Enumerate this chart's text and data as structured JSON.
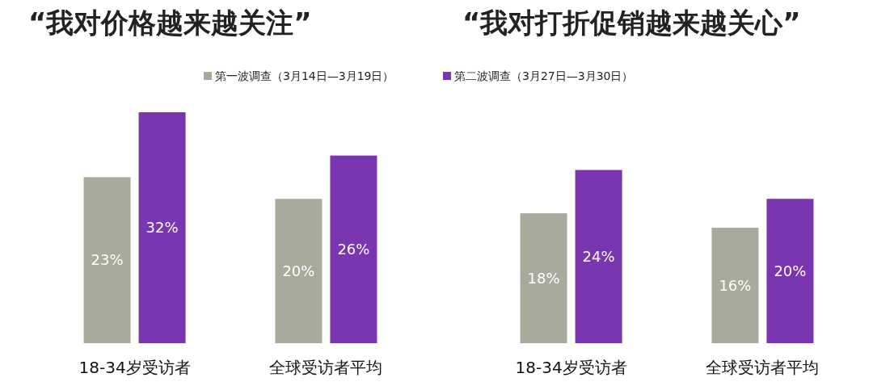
{
  "chart_data": [
    {
      "type": "bar",
      "title": "“我对价格越来越关注”",
      "categories": [
        "18-34岁受访者",
        "全球受访者平均"
      ],
      "legend": "top",
      "series": [
        {
          "name": "第一波调查（3月14日—3月19日）",
          "color": "#a9a99c",
          "values": [
            23,
            20
          ],
          "value_labels": [
            "23%",
            "20%"
          ]
        },
        {
          "name": "第二波调查（3月27日—3月30日）",
          "color": "#7a35b0",
          "values": [
            32,
            26
          ],
          "value_labels": [
            "32%",
            "26%"
          ]
        }
      ]
    },
    {
      "type": "bar",
      "title": "“我对打折促销越来越关心”",
      "categories": [
        "18-34岁受访者",
        "全球受访者平均"
      ],
      "series": [
        {
          "color": "#a9a99c",
          "values": [
            18,
            16
          ],
          "value_labels": [
            "18%",
            "16%"
          ]
        },
        {
          "color": "#7a35b0",
          "values": [
            24,
            20
          ],
          "value_labels": [
            "24%",
            "20%"
          ]
        }
      ]
    }
  ]
}
